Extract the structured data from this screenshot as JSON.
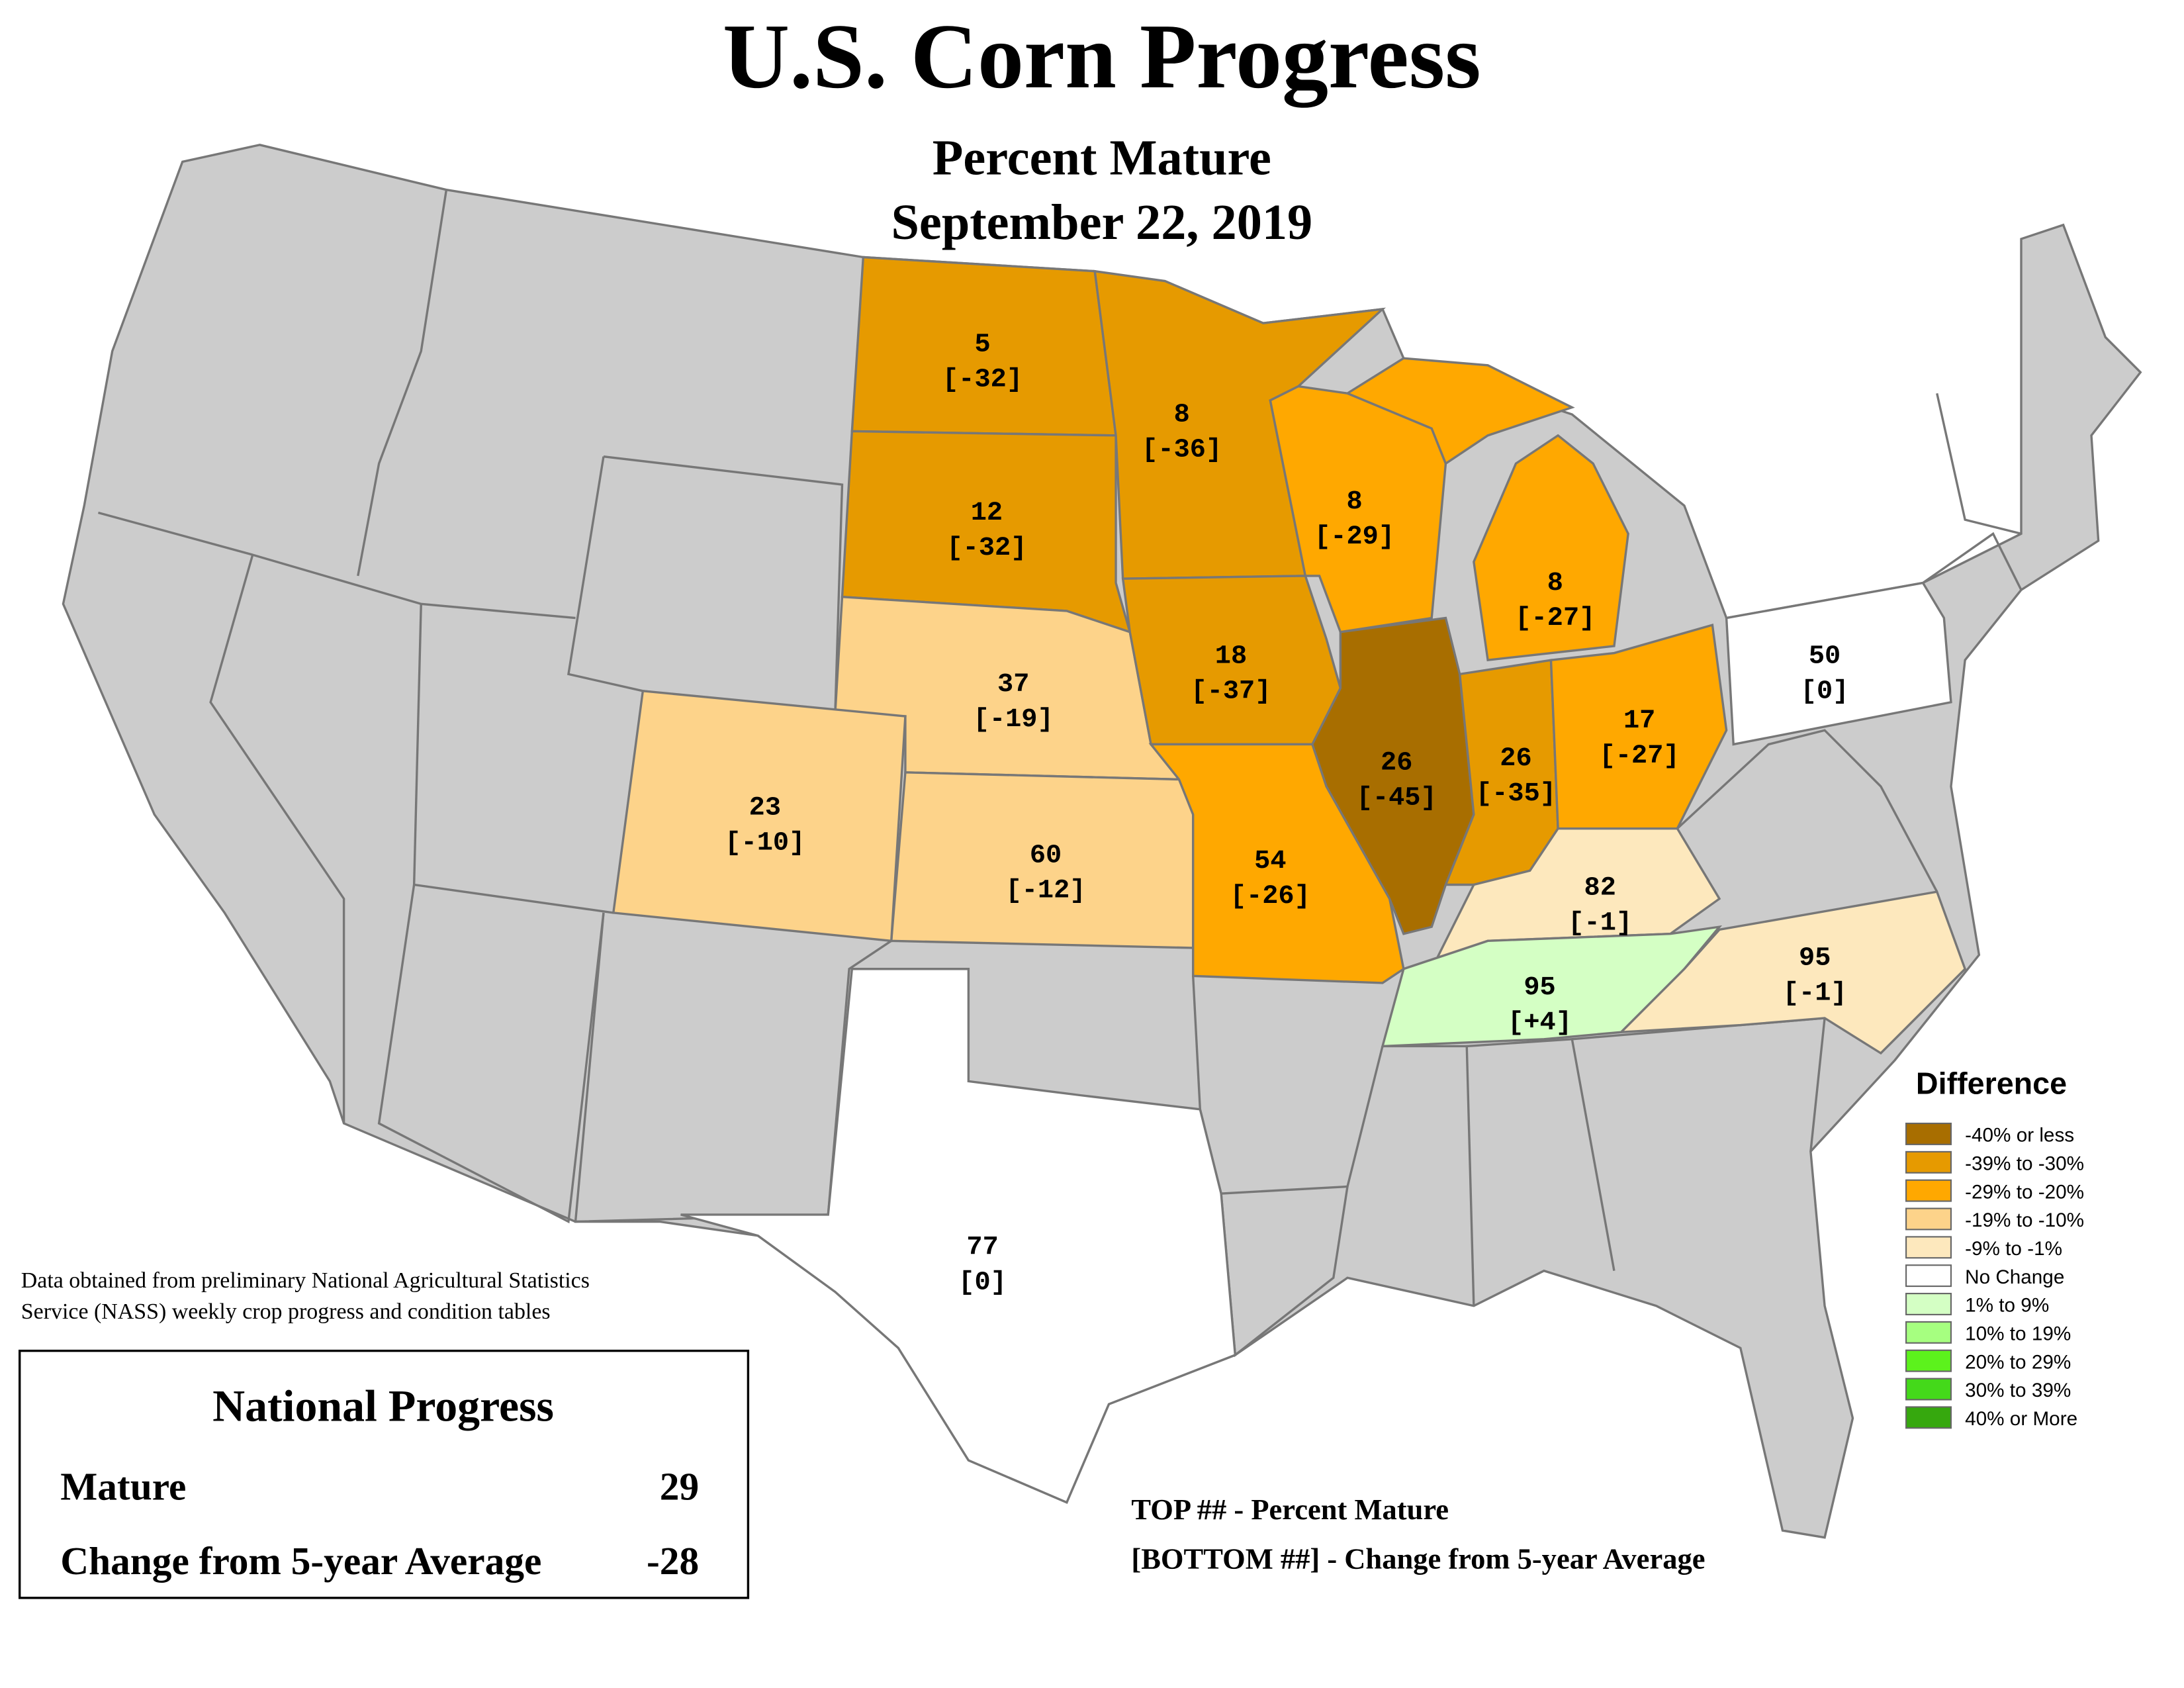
{
  "header": {
    "title": "U.S. Corn Progress",
    "subtitle": "Percent Mature",
    "date": "September 22, 2019"
  },
  "states": [
    {
      "mature": 5,
      "change": {
        "value": -32,
        "label": "[-32]"
      },
      "color": "#e69a00"
    },
    {
      "mature": 12,
      "change": {
        "value": -32,
        "label": "[-32]"
      },
      "color": "#e69a00"
    },
    {
      "mature": 37,
      "change": {
        "value": -19,
        "label": "[-19]"
      },
      "color": "#fdd38a"
    },
    {
      "mature": 60,
      "change": {
        "value": -12,
        "label": "[-12]"
      },
      "color": "#fdd38a"
    },
    {
      "mature": 23,
      "change": {
        "value": -10,
        "label": "[-10]"
      },
      "color": "#fdd38a"
    },
    {
      "mature": 8,
      "change": {
        "value": -36,
        "label": "[-36]"
      },
      "color": "#e69a00"
    },
    {
      "mature": 18,
      "change": {
        "value": -37,
        "label": "[-37]"
      },
      "color": "#e69a00"
    },
    {
      "mature": 54,
      "change": {
        "value": -26,
        "label": "[-26]"
      },
      "color": "#ffa800"
    },
    {
      "mature": 8,
      "change": {
        "value": -29,
        "label": "[-29]"
      },
      "color": "#ffa800"
    },
    {
      "mature": 26,
      "change": {
        "value": -45,
        "label": "[-45]"
      },
      "color": "#a86e00"
    },
    {
      "mature": 26,
      "change": {
        "value": -35,
        "label": "[-35]"
      },
      "color": "#e69a00"
    },
    {
      "mature": 8,
      "change": {
        "value": -27,
        "label": "[-27]"
      },
      "color": "#ffa800"
    },
    {
      "mature": 17,
      "change": {
        "value": -27,
        "label": "[-27]"
      },
      "color": "#ffa800"
    },
    {
      "mature": 82,
      "change": {
        "value": -1,
        "label": "[-1]"
      },
      "color": "#fde8bd"
    },
    {
      "mature": 95,
      "change": {
        "value": 4,
        "label": "[+4]"
      },
      "color": "#d4ffc4"
    },
    {
      "mature": 95,
      "change": {
        "value": -1,
        "label": "[-1]"
      },
      "color": "#fde8bd"
    },
    {
      "mature": 50,
      "change": {
        "value": 0,
        "label": "[0]"
      },
      "color": "#ffffff"
    },
    {
      "mature": 77,
      "change": {
        "value": 0,
        "label": "[0]"
      },
      "color": "#ffffff"
    }
  ],
  "legend": {
    "title": "Difference",
    "items": [
      {
        "label": "-40% or less",
        "color": "#a86e00"
      },
      {
        "label": "-39% to -30%",
        "color": "#e69a00"
      },
      {
        "label": "-29% to -20%",
        "color": "#ffa800"
      },
      {
        "label": "-19% to -10%",
        "color": "#fdd38a"
      },
      {
        "label": "-9% to -1%",
        "color": "#fde8bd"
      },
      {
        "label": "No Change",
        "color": "#ffffff"
      },
      {
        "label": "1% to 9%",
        "color": "#d4ffc4"
      },
      {
        "label": "10% to 19%",
        "color": "#a6ff80"
      },
      {
        "label": "20% to 29%",
        "color": "#5cf21c"
      },
      {
        "label": "30% to 39%",
        "color": "#44d91a"
      },
      {
        "label": "40% or More",
        "color": "#36a80e"
      }
    ]
  },
  "note": [
    "Data obtained from preliminary National Agricultural Statistics",
    "Service (NASS) weekly crop progress and condition tables"
  ],
  "national": {
    "title": "National Progress",
    "rows": [
      {
        "label": "Mature",
        "value": 29
      },
      {
        "label": "Change from 5-year Average",
        "value": -28
      }
    ]
  },
  "key": [
    "TOP ## - Percent Mature",
    "[BOTTOM ##] - Change from 5-year Average"
  ]
}
